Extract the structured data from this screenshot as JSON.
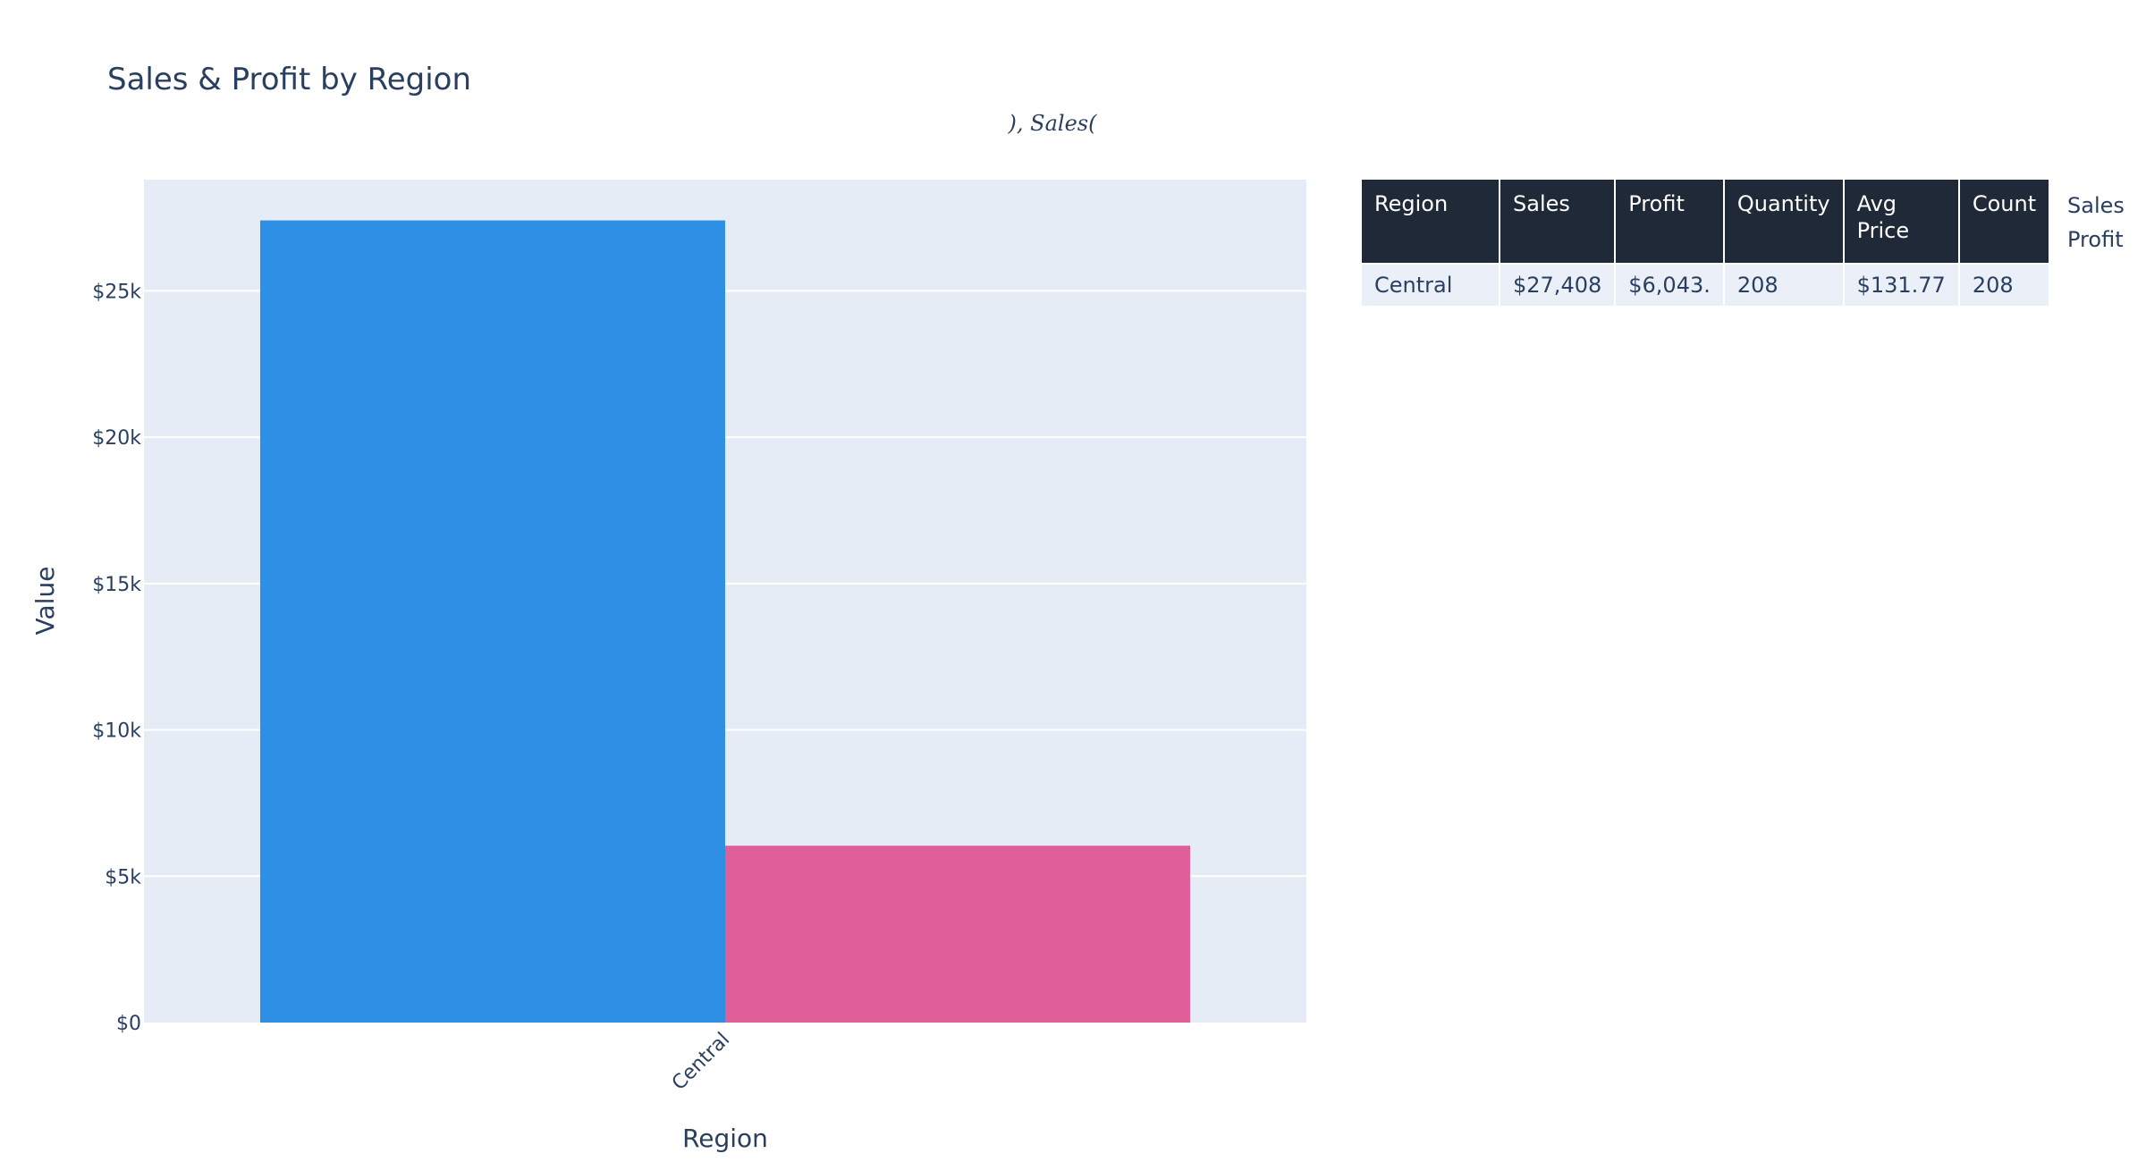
{
  "chart_data": {
    "type": "bar",
    "title": "Sales & Profit by Region",
    "subtitle": "), Sales(",
    "xlabel": "Region",
    "ylabel": "Value",
    "categories": [
      "Central"
    ],
    "series": [
      {
        "name": "Sales",
        "values": [
          27408
        ],
        "color": "#2e90e5"
      },
      {
        "name": "Profit",
        "values": [
          6043
        ],
        "color": "#e05f98"
      }
    ],
    "ylim": [
      0,
      28800
    ],
    "yticks": [
      0,
      5000,
      10000,
      15000,
      20000,
      25000
    ],
    "ytick_labels": [
      "$0",
      "$5k",
      "$10k",
      "$15k",
      "$20k",
      "$25k"
    ],
    "grid": true,
    "legend_position": "top-right",
    "plot_bg": "#e5ecf6"
  },
  "table": {
    "headers": [
      "Region",
      "Sales",
      "Profit",
      "Quantity",
      "Avg Price",
      "Count"
    ],
    "rows": [
      [
        "Central",
        "$27,408",
        "$6,043.",
        "208",
        "$131.77",
        "208"
      ]
    ],
    "header_bg": "#1f2937",
    "cell_bg": "#ebf0f8"
  }
}
